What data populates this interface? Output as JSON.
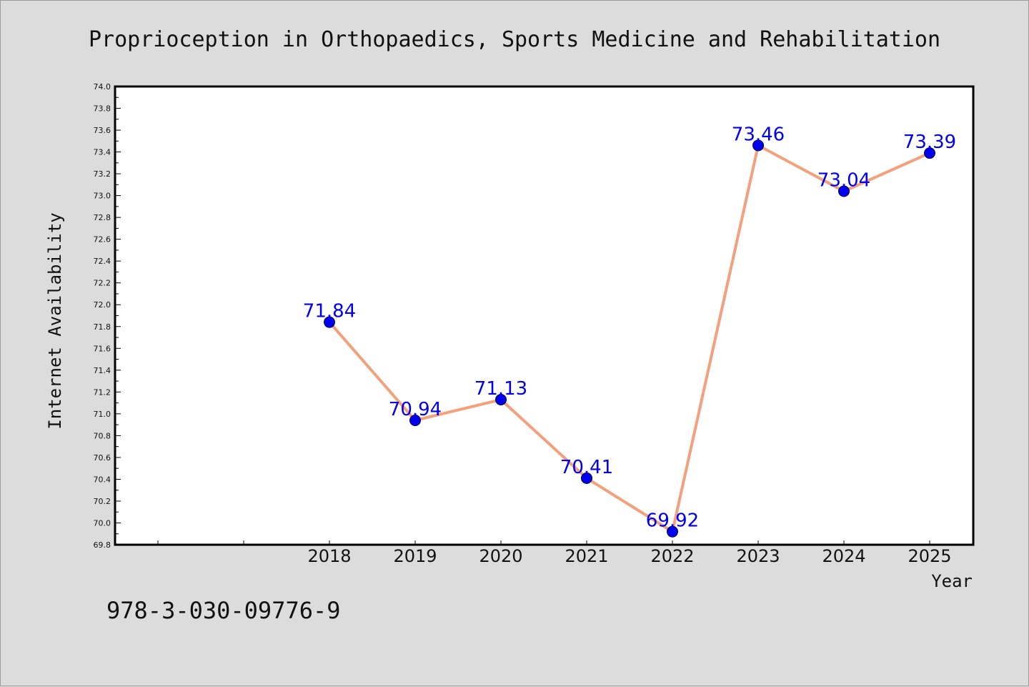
{
  "chart_data": {
    "type": "line",
    "title": "Proprioception in Orthopaedics, Sports Medicine and Rehabilitation",
    "xlabel": "Year",
    "ylabel": "Internet Availability",
    "x": [
      "2018",
      "2019",
      "2020",
      "2021",
      "2022",
      "2023",
      "2024",
      "2025"
    ],
    "series": [
      {
        "values": [
          71.84,
          70.94,
          71.13,
          70.41,
          69.92,
          73.46,
          73.04,
          73.39
        ]
      }
    ],
    "data_labels": [
      "71.84",
      "70.94",
      "71.13",
      "70.41",
      "69.92",
      "73.46",
      "73.04",
      "73.39"
    ],
    "ylim": [
      69.8,
      74.0
    ],
    "yticks": [
      "69.8",
      "70.0",
      "70.2",
      "70.4",
      "70.6",
      "70.8",
      "71.0",
      "71.2",
      "71.4",
      "71.6",
      "71.8",
      "72.0",
      "72.2",
      "72.4",
      "72.6",
      "72.8",
      "73.0",
      "73.2",
      "73.4",
      "73.6",
      "73.8",
      "74.0"
    ],
    "grid": false,
    "legend": "none",
    "colors": {
      "line": "#f4a07a",
      "marker": "#0000ee",
      "label": "#0000ee",
      "plot_bg": "#ffffff",
      "figure_bg": "#dcdcdc"
    }
  },
  "footnote": "978-3-030-09776-9"
}
